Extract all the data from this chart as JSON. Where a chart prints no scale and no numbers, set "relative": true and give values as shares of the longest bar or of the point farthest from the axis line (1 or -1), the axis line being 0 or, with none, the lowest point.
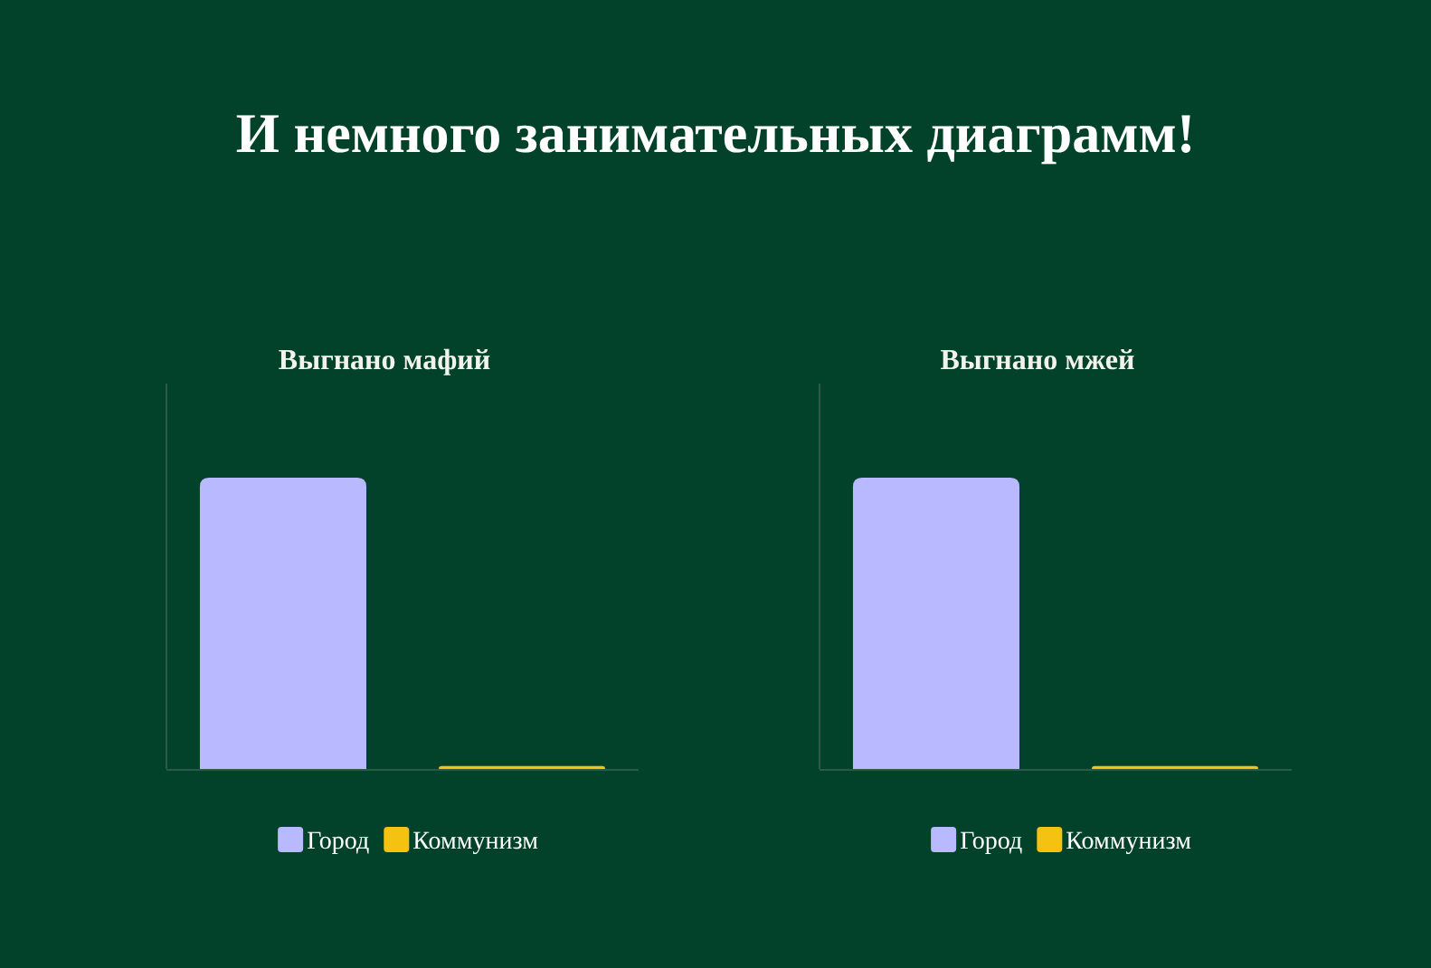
{
  "chart_data": [
    {
      "type": "bar",
      "title": "Выгнано мафий",
      "annotations": [
        "И немного занимательных диаграмм!"
      ],
      "categories": [
        null
      ],
      "relative": true,
      "legend": "bottom",
      "series": [
        {
          "name": "Город",
          "color": "#b9b9ff",
          "values": [
            1
          ]
        },
        {
          "name": "Коммунизм",
          "color": "#f5c211",
          "values": [
            0.01
          ]
        }
      ]
    },
    {
      "type": "bar",
      "title": "Выгнано мжей",
      "categories": [
        null
      ],
      "relative": true,
      "legend": "bottom",
      "series": [
        {
          "name": "Город",
          "color": "#b9b9ff",
          "values": [
            1
          ]
        },
        {
          "name": "Коммунизм",
          "color": "#f5c211",
          "values": [
            0.01
          ]
        }
      ]
    }
  ]
}
